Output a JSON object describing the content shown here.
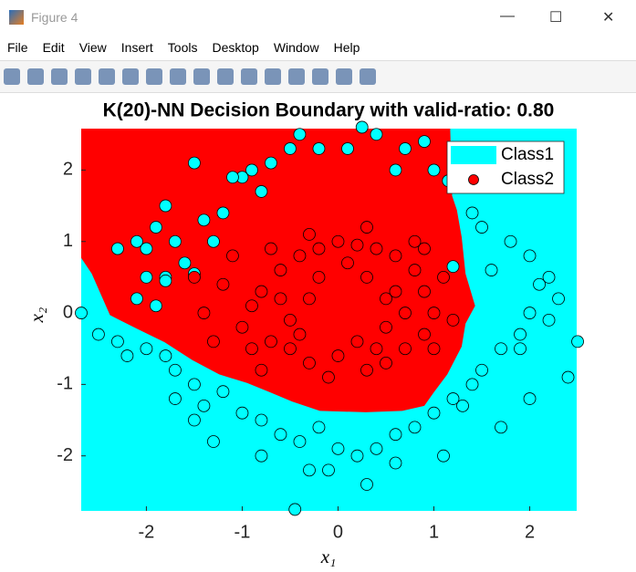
{
  "window": {
    "title": "Figure 4",
    "menu": [
      "File",
      "Edit",
      "View",
      "Insert",
      "Tools",
      "Desktop",
      "Window",
      "Help"
    ]
  },
  "chart_data": {
    "type": "scatter",
    "title": "K(20)-NN Decision Boundary with valid-ratio: 0.80",
    "xlabel": "x₁",
    "ylabel": "x₂",
    "xlim": [
      -2.68,
      2.49
    ],
    "ylim": [
      -2.77,
      2.58
    ],
    "xticks": [
      -2,
      -1,
      0,
      1,
      2
    ],
    "yticks": [
      -2,
      -1,
      0,
      1,
      2
    ],
    "legend": "upper right",
    "decision_region": {
      "color": "#ff0000",
      "x": [
        -2.68,
        1.17,
        1.19,
        1.24,
        1.29,
        1.33,
        1.43,
        1.33,
        1.29,
        1.14,
        1.0,
        0.9,
        0.67,
        0.29,
        -0.19,
        -0.48,
        -0.71,
        -0.95,
        -1.24,
        -1.52,
        -1.81,
        -2.1,
        -2.38,
        -2.57,
        -2.68
      ],
      "y": [
        2.58,
        2.58,
        1.64,
        1.44,
        1.06,
        0.55,
        0.1,
        -0.15,
        -0.47,
        -0.86,
        -1.11,
        -1.3,
        -1.37,
        -1.39,
        -1.37,
        -1.24,
        -1.11,
        -0.98,
        -0.86,
        -0.66,
        -0.41,
        -0.22,
        -0.03,
        0.55,
        0.77
      ]
    },
    "series": [
      {
        "name": "Class1",
        "color": "#00ffff",
        "x": [
          -2.3,
          -2.1,
          -2.0,
          -1.9,
          -1.8,
          -1.7,
          -1.6,
          -1.5,
          -2.0,
          -1.8,
          -2.1,
          -1.9,
          -1.8,
          -1.2,
          -1.0,
          -0.9,
          -0.7,
          -0.5,
          -0.4,
          -0.2,
          0.1,
          0.25,
          0.4,
          0.7,
          0.9,
          1.0,
          -1.4,
          -1.1,
          -0.8,
          -1.5,
          -1.3,
          0.6,
          1.15,
          1.2,
          -2.68,
          -2.5,
          -2.3,
          -2.2,
          -2.0,
          -1.8,
          -1.7,
          -1.5,
          -1.7,
          -1.4,
          -1.2,
          -1.0,
          -0.8,
          -0.6,
          -0.4,
          -0.2,
          0.0,
          0.2,
          0.4,
          0.6,
          0.8,
          1.0,
          1.2,
          1.4,
          1.5,
          1.7,
          1.9,
          2.0,
          2.1,
          2.2,
          2.3,
          2.5,
          2.4,
          2.0,
          1.7,
          1.1,
          0.6,
          -0.1,
          -0.8,
          -1.3,
          -0.45,
          0.3,
          1.3,
          1.6,
          1.8,
          1.5,
          1.4,
          2.0,
          -1.5,
          -0.3,
          1.9,
          2.2
        ],
        "y": [
          0.9,
          1.0,
          0.9,
          1.2,
          1.5,
          1.0,
          0.7,
          0.55,
          0.5,
          0.5,
          0.2,
          0.1,
          0.45,
          1.4,
          1.9,
          2.0,
          2.1,
          2.3,
          2.5,
          2.3,
          2.3,
          2.6,
          2.5,
          2.3,
          2.4,
          2.0,
          1.3,
          1.9,
          1.7,
          2.1,
          1.0,
          2.0,
          1.85,
          0.65,
          0.0,
          -0.3,
          -0.4,
          -0.6,
          -0.5,
          -0.6,
          -0.8,
          -1.0,
          -1.2,
          -1.3,
          -1.1,
          -1.4,
          -1.5,
          -1.7,
          -1.8,
          -1.6,
          -1.9,
          -2.0,
          -1.9,
          -1.7,
          -1.6,
          -1.4,
          -1.2,
          -1.0,
          -0.8,
          -0.5,
          -0.3,
          0.0,
          0.4,
          0.5,
          0.2,
          -0.4,
          -0.9,
          -1.2,
          -1.6,
          -2.0,
          -2.1,
          -2.2,
          -2.0,
          -1.8,
          -2.75,
          -2.4,
          -1.3,
          0.6,
          1.0,
          1.2,
          1.4,
          0.8,
          -1.5,
          -2.2,
          -0.5,
          -0.1
        ]
      },
      {
        "name": "Class2",
        "color": "#ff0000",
        "x": [
          -0.8,
          -0.9,
          -1.0,
          -0.7,
          -0.6,
          -0.4,
          -0.2,
          0.0,
          0.2,
          0.4,
          0.6,
          0.8,
          0.9,
          1.0,
          0.9,
          0.7,
          0.5,
          0.3,
          0.0,
          -0.3,
          -0.5,
          -0.9,
          -1.2,
          -1.4,
          -1.3,
          -0.6,
          -0.5,
          0.6,
          0.5,
          0.7,
          0.3,
          -0.2,
          -0.3,
          0.2,
          0.1,
          -0.7,
          -0.3,
          0.3,
          0.8,
          1.1,
          1.2,
          0.4,
          -0.1,
          -0.8,
          -1.1,
          -1.5,
          0.9,
          0.5,
          -0.4,
          1.0
        ],
        "y": [
          0.3,
          0.1,
          -0.2,
          -0.4,
          0.6,
          0.8,
          0.9,
          1.0,
          0.95,
          0.9,
          0.8,
          0.6,
          0.3,
          0.0,
          -0.3,
          -0.5,
          -0.7,
          -0.8,
          -0.6,
          -0.7,
          -0.5,
          -0.5,
          0.4,
          0.0,
          -0.4,
          0.2,
          -0.1,
          0.3,
          -0.2,
          0.0,
          0.5,
          0.5,
          0.2,
          -0.4,
          0.7,
          0.9,
          1.1,
          1.2,
          1.0,
          0.5,
          -0.1,
          -0.5,
          -0.9,
          -0.8,
          0.8,
          0.5,
          0.9,
          0.2,
          -0.3,
          -0.5
        ]
      }
    ]
  }
}
